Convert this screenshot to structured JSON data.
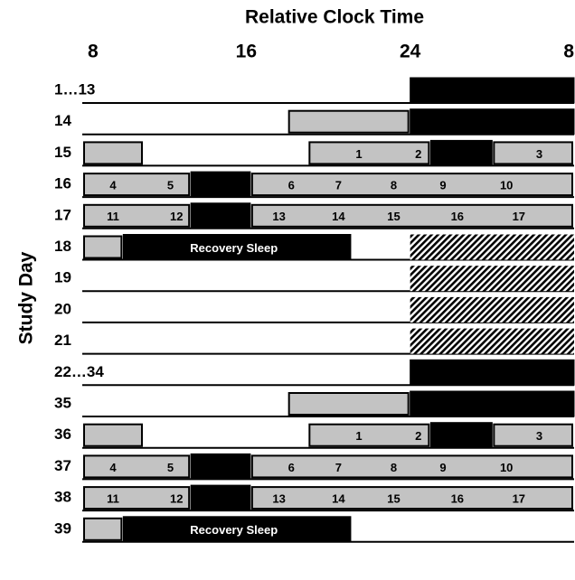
{
  "chart_data": {
    "type": "schedule",
    "title": "Relative Clock Time",
    "y_label": "Study Day",
    "xlim": [
      8,
      32
    ],
    "xticks": [
      8,
      16,
      24,
      {
        "value": 32,
        "label": "8"
      }
    ],
    "rows": [
      {
        "label": "1…13",
        "segments": [
          {
            "kind": "black",
            "start": 24,
            "end": 32
          }
        ],
        "labels": []
      },
      {
        "label": "14",
        "segments": [
          {
            "kind": "gray",
            "start": 18,
            "end": 24
          },
          {
            "kind": "black",
            "start": 24,
            "end": 32
          }
        ],
        "labels": []
      },
      {
        "label": "15",
        "segments": [
          {
            "kind": "gray",
            "start": 8,
            "end": 11
          },
          {
            "kind": "gray",
            "start": 19,
            "end": 25
          },
          {
            "kind": "black",
            "start": 25,
            "end": 28
          },
          {
            "kind": "gray",
            "start": 28,
            "end": 32
          }
        ],
        "labels": [
          {
            "x": 21.5,
            "text": "1"
          },
          {
            "x": 24.4,
            "text": "2"
          },
          {
            "x": 30.3,
            "text": "3"
          }
        ]
      },
      {
        "label": "16",
        "segments": [
          {
            "kind": "gray",
            "start": 8,
            "end": 13.3
          },
          {
            "kind": "black",
            "start": 13.3,
            "end": 16.2
          },
          {
            "kind": "gray",
            "start": 16.2,
            "end": 32
          }
        ],
        "labels": [
          {
            "x": 9.5,
            "text": "4"
          },
          {
            "x": 12.3,
            "text": "5"
          },
          {
            "x": 18.2,
            "text": "6"
          },
          {
            "x": 20.5,
            "text": "7"
          },
          {
            "x": 23.2,
            "text": "8"
          },
          {
            "x": 25.6,
            "text": "9"
          },
          {
            "x": 28.7,
            "text": "10"
          }
        ]
      },
      {
        "label": "17",
        "segments": [
          {
            "kind": "gray",
            "start": 8,
            "end": 13.3
          },
          {
            "kind": "black",
            "start": 13.3,
            "end": 16.2
          },
          {
            "kind": "gray",
            "start": 16.2,
            "end": 32
          }
        ],
        "labels": [
          {
            "x": 9.5,
            "text": "11"
          },
          {
            "x": 12.6,
            "text": "12"
          },
          {
            "x": 17.6,
            "text": "13"
          },
          {
            "x": 20.5,
            "text": "14"
          },
          {
            "x": 23.2,
            "text": "15"
          },
          {
            "x": 26.3,
            "text": "16"
          },
          {
            "x": 29.3,
            "text": "17"
          }
        ]
      },
      {
        "label": "18",
        "segments": [
          {
            "kind": "gray",
            "start": 8,
            "end": 10
          },
          {
            "kind": "black",
            "start": 10,
            "end": 21.1
          },
          {
            "kind": "hatch",
            "start": 24,
            "end": 32
          }
        ],
        "labels": [
          {
            "x": 15.4,
            "text": "Recovery Sleep"
          }
        ]
      },
      {
        "label": "19",
        "segments": [
          {
            "kind": "hatch",
            "start": 24,
            "end": 32
          }
        ],
        "labels": []
      },
      {
        "label": "20",
        "segments": [
          {
            "kind": "hatch",
            "start": 24,
            "end": 32
          }
        ],
        "labels": []
      },
      {
        "label": "21",
        "segments": [
          {
            "kind": "hatch",
            "start": 24,
            "end": 32
          }
        ],
        "labels": []
      },
      {
        "label": "22…34",
        "segments": [
          {
            "kind": "black",
            "start": 24,
            "end": 32
          }
        ],
        "labels": []
      },
      {
        "label": "35",
        "segments": [
          {
            "kind": "gray",
            "start": 18,
            "end": 24
          },
          {
            "kind": "black",
            "start": 24,
            "end": 32
          }
        ],
        "labels": []
      },
      {
        "label": "36",
        "segments": [
          {
            "kind": "gray",
            "start": 8,
            "end": 11
          },
          {
            "kind": "gray",
            "start": 19,
            "end": 25
          },
          {
            "kind": "black",
            "start": 25,
            "end": 28
          },
          {
            "kind": "gray",
            "start": 28,
            "end": 32
          }
        ],
        "labels": [
          {
            "x": 21.5,
            "text": "1"
          },
          {
            "x": 24.4,
            "text": "2"
          },
          {
            "x": 30.3,
            "text": "3"
          }
        ]
      },
      {
        "label": "37",
        "segments": [
          {
            "kind": "gray",
            "start": 8,
            "end": 13.3
          },
          {
            "kind": "black",
            "start": 13.3,
            "end": 16.2
          },
          {
            "kind": "gray",
            "start": 16.2,
            "end": 32
          }
        ],
        "labels": [
          {
            "x": 9.5,
            "text": "4"
          },
          {
            "x": 12.3,
            "text": "5"
          },
          {
            "x": 18.2,
            "text": "6"
          },
          {
            "x": 20.5,
            "text": "7"
          },
          {
            "x": 23.2,
            "text": "8"
          },
          {
            "x": 25.6,
            "text": "9"
          },
          {
            "x": 28.7,
            "text": "10"
          }
        ]
      },
      {
        "label": "38",
        "segments": [
          {
            "kind": "gray",
            "start": 8,
            "end": 13.3
          },
          {
            "kind": "black",
            "start": 13.3,
            "end": 16.2
          },
          {
            "kind": "gray",
            "start": 16.2,
            "end": 32
          }
        ],
        "labels": [
          {
            "x": 9.5,
            "text": "11"
          },
          {
            "x": 12.6,
            "text": "12"
          },
          {
            "x": 17.6,
            "text": "13"
          },
          {
            "x": 20.5,
            "text": "14"
          },
          {
            "x": 23.2,
            "text": "15"
          },
          {
            "x": 26.3,
            "text": "16"
          },
          {
            "x": 29.3,
            "text": "17"
          }
        ]
      },
      {
        "label": "39",
        "segments": [
          {
            "kind": "gray",
            "start": 8,
            "end": 10
          },
          {
            "kind": "black",
            "start": 10,
            "end": 21.1
          }
        ],
        "labels": [
          {
            "x": 15.4,
            "text": "Recovery Sleep"
          }
        ]
      }
    ]
  }
}
